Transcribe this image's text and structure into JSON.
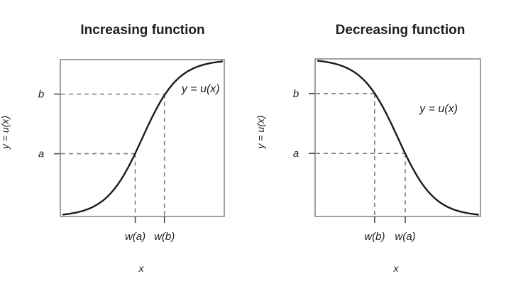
{
  "figure": {
    "background": "#ffffff",
    "title_color": "#111111",
    "curve_color": "#1b1b1b",
    "box_border_color": "#808080",
    "guide_color": "#7d7d7d",
    "tick_color": "#4a4a4a",
    "label_color": "#1f1f1f"
  },
  "chart_data": [
    {
      "type": "line",
      "title": "Increasing function",
      "xlabel": "x",
      "ylabel": "y = u(x)",
      "curve_label": "y = u(x)",
      "curve_label_pos": {
        "x": 0.856,
        "y": 0.82
      },
      "direction": "increasing",
      "xlim": [
        0,
        1
      ],
      "ylim": [
        0,
        1
      ],
      "grid": false,
      "legend": "none",
      "sigmoid": {
        "x0": 0.5,
        "s": 0.11,
        "x_start": 0.017,
        "x_end": 0.987
      },
      "x_ticks": [
        {
          "label": "w(a)",
          "x": 0.457
        },
        {
          "label": "w(b)",
          "x": 0.635
        }
      ],
      "y_ticks": [
        {
          "label": "b",
          "y": 0.78
        },
        {
          "label": "a",
          "y": 0.4
        }
      ],
      "guides": [
        {
          "x": 0.635,
          "y": 0.78
        },
        {
          "x": 0.457,
          "y": 0.4
        }
      ]
    },
    {
      "type": "line",
      "title": "Decreasing function",
      "xlabel": "x",
      "ylabel": "y = u(x)",
      "curve_label": "y = u(x)",
      "curve_label_pos": {
        "x": 0.747,
        "y": 0.69
      },
      "direction": "decreasing",
      "xlim": [
        0,
        1
      ],
      "ylim": [
        0,
        1
      ],
      "grid": false,
      "legend": "none",
      "sigmoid": {
        "x0": 0.5,
        "s": 0.11,
        "x_start": 0.017,
        "x_end": 0.987
      },
      "x_ticks": [
        {
          "label": "w(b)",
          "x": 0.36
        },
        {
          "label": "w(a)",
          "x": 0.545
        }
      ],
      "y_ticks": [
        {
          "label": "b",
          "y": 0.78
        },
        {
          "label": "a",
          "y": 0.4
        }
      ],
      "guides": [
        {
          "x": 0.36,
          "y": 0.78
        },
        {
          "x": 0.545,
          "y": 0.4
        }
      ]
    }
  ]
}
